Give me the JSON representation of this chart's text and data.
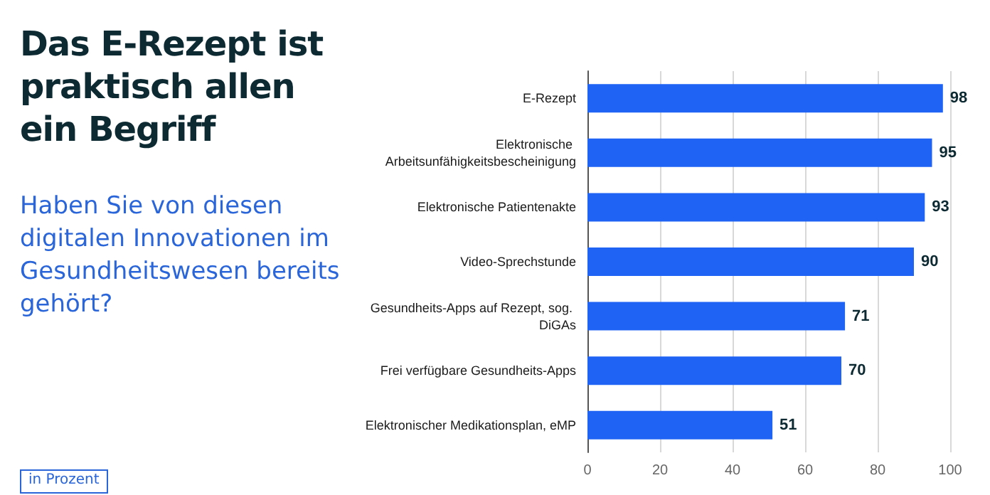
{
  "chart_data": {
    "type": "bar",
    "orientation": "horizontal",
    "title": "Das E-Rezept ist praktisch allen ein Begriff",
    "subtitle": "Haben Sie von diesen digitalen Innovationen im Gesundheitswesen bereits gehört?",
    "annotations": [
      "in Prozent"
    ],
    "categories": [
      "E-Rezept",
      "Elektronische Arbeitsunfähigkeitsbescheinigung",
      "Elektronische Patientenakte",
      "Video-Sprechstunde",
      "Gesundheits-Apps auf Rezept, sog. DiGAs",
      "Frei verfügbare Gesundheits-Apps",
      "Elektronischer Medikationsplan, eMP"
    ],
    "values": [
      98,
      95,
      93,
      90,
      71,
      70,
      51
    ],
    "color": "#1f63f5",
    "xlim": [
      0,
      100
    ],
    "xticks": [
      0,
      20,
      40,
      60,
      80,
      100
    ],
    "grid": "x",
    "data_labels": true
  }
}
